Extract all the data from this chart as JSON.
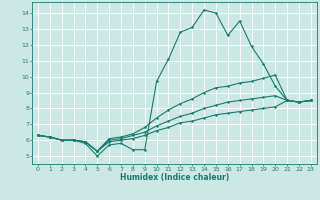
{
  "xlabel": "Humidex (Indice chaleur)",
  "ylabel": "",
  "background_color": "#cce8e4",
  "grid_color": "#ffffff",
  "line_color": "#1a7a6e",
  "xlim": [
    -0.5,
    23.5
  ],
  "ylim": [
    4.5,
    14.7
  ],
  "xticks": [
    0,
    1,
    2,
    3,
    4,
    5,
    6,
    7,
    8,
    9,
    10,
    11,
    12,
    13,
    14,
    15,
    16,
    17,
    18,
    19,
    20,
    21,
    22,
    23
  ],
  "yticks": [
    5,
    6,
    7,
    8,
    9,
    10,
    11,
    12,
    13,
    14
  ],
  "line1_x": [
    0,
    1,
    2,
    3,
    4,
    5,
    6,
    7,
    8,
    9,
    10,
    11,
    12,
    13,
    14,
    15,
    16,
    17,
    18,
    19,
    20,
    21,
    22,
    23
  ],
  "line1_y": [
    6.3,
    6.2,
    6.0,
    6.0,
    5.8,
    5.0,
    5.7,
    5.8,
    5.4,
    5.4,
    9.7,
    11.1,
    12.8,
    13.1,
    14.2,
    14.0,
    12.6,
    13.5,
    11.9,
    10.8,
    9.4,
    8.5,
    8.4,
    8.5
  ],
  "line2_x": [
    0,
    1,
    2,
    3,
    4,
    5,
    6,
    7,
    8,
    9,
    10,
    11,
    12,
    13,
    14,
    15,
    16,
    17,
    18,
    19,
    20,
    21,
    22,
    23
  ],
  "line2_y": [
    6.3,
    6.2,
    6.0,
    6.0,
    5.9,
    5.3,
    6.1,
    6.2,
    6.4,
    6.8,
    7.4,
    7.9,
    8.3,
    8.6,
    9.0,
    9.3,
    9.4,
    9.6,
    9.7,
    9.9,
    10.1,
    8.5,
    8.4,
    8.5
  ],
  "line3_x": [
    0,
    1,
    2,
    3,
    4,
    5,
    6,
    7,
    8,
    9,
    10,
    11,
    12,
    13,
    14,
    15,
    16,
    17,
    18,
    19,
    20,
    21,
    22,
    23
  ],
  "line3_y": [
    6.3,
    6.2,
    6.0,
    6.0,
    5.9,
    5.3,
    6.0,
    6.1,
    6.3,
    6.5,
    6.9,
    7.2,
    7.5,
    7.7,
    8.0,
    8.2,
    8.4,
    8.5,
    8.6,
    8.7,
    8.8,
    8.5,
    8.4,
    8.5
  ],
  "line4_x": [
    0,
    1,
    2,
    3,
    4,
    5,
    6,
    7,
    8,
    9,
    10,
    11,
    12,
    13,
    14,
    15,
    16,
    17,
    18,
    19,
    20,
    21,
    22,
    23
  ],
  "line4_y": [
    6.3,
    6.2,
    6.0,
    6.0,
    5.9,
    5.3,
    5.9,
    6.0,
    6.1,
    6.3,
    6.6,
    6.8,
    7.1,
    7.2,
    7.4,
    7.6,
    7.7,
    7.8,
    7.9,
    8.0,
    8.1,
    8.5,
    8.4,
    8.5
  ],
  "xlabel_fontsize": 5.5,
  "tick_fontsize": 4.5,
  "marker_size": 1.8,
  "line_width": 0.8
}
